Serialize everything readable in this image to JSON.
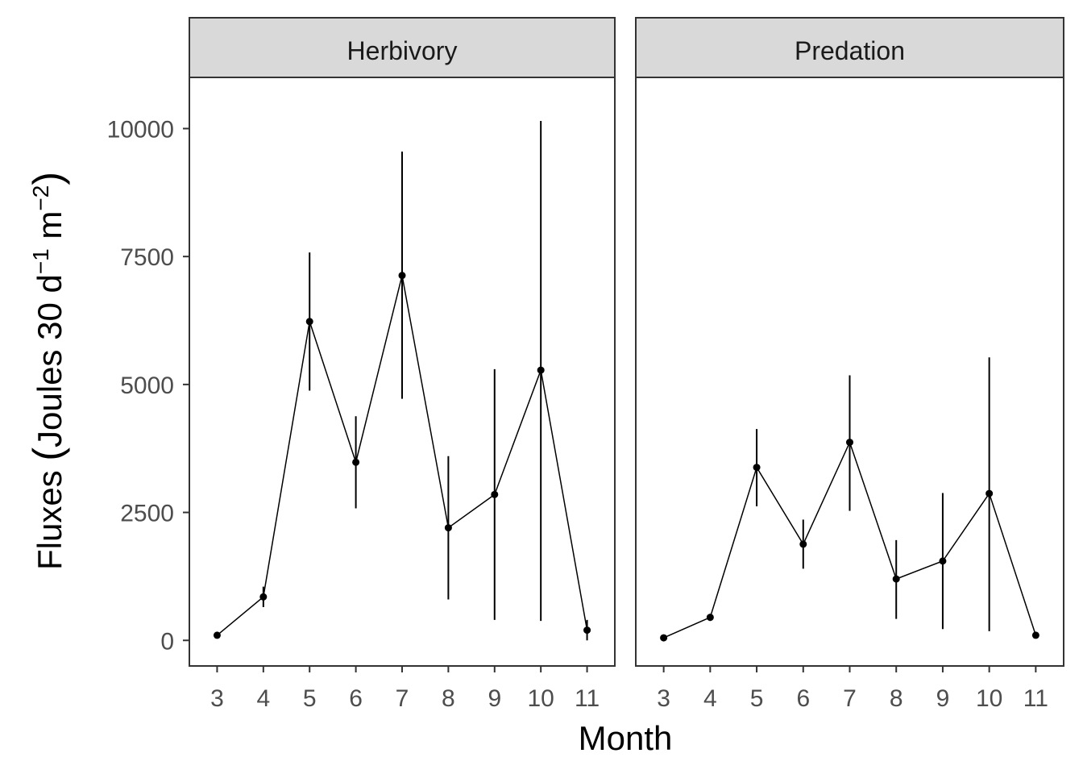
{
  "chart_data": {
    "type": "line",
    "xlabel": "Month",
    "ylabel": {
      "prefix": "Fluxes ",
      "paren_open": "(",
      "text1": "Joules 30 d",
      "sup1": "−1",
      "text2": " m",
      "sup2": "−2",
      "paren_close": ")"
    },
    "x_ticks": [
      "3",
      "4",
      "5",
      "6",
      "7",
      "8",
      "9",
      "10",
      "11"
    ],
    "y_ticks": [
      "0",
      "2500",
      "5000",
      "7500",
      "10000"
    ],
    "ylim": [
      -500,
      11000
    ],
    "grid": false,
    "panels": [
      {
        "title": "Herbivory",
        "x": [
          3,
          4,
          5,
          6,
          7,
          8,
          9,
          10,
          11
        ],
        "y": [
          100,
          850,
          6230,
          3480,
          7130,
          2200,
          2850,
          5280,
          200
        ],
        "lower": [
          50,
          650,
          4880,
          2580,
          4720,
          800,
          400,
          380,
          0
        ],
        "upper": [
          150,
          1050,
          7580,
          4380,
          9550,
          3600,
          5300,
          10150,
          400
        ]
      },
      {
        "title": "Predation",
        "x": [
          3,
          4,
          5,
          6,
          7,
          8,
          9,
          10,
          11
        ],
        "y": [
          50,
          450,
          3380,
          1880,
          3870,
          1200,
          1550,
          2870,
          100
        ],
        "lower": [
          20,
          380,
          2620,
          1400,
          2530,
          420,
          220,
          180,
          40
        ],
        "upper": [
          80,
          520,
          4130,
          2360,
          5180,
          1960,
          2880,
          5530,
          160
        ]
      }
    ]
  }
}
